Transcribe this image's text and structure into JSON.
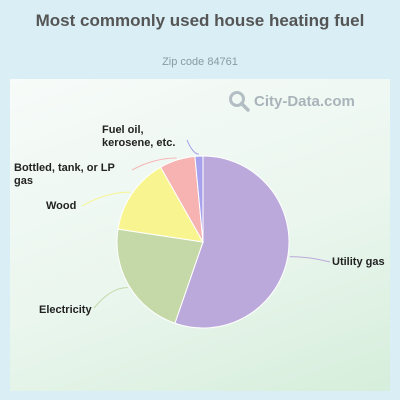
{
  "header": {
    "title": "Most commonly used house heating fuel",
    "subtitle": "Zip code 84761"
  },
  "watermark": {
    "text": "City-Data.com",
    "icon": "magnifier-icon"
  },
  "chart_data": {
    "type": "pie",
    "title": "Most commonly used house heating fuel",
    "subtitle": "Zip code 84761",
    "legend": "none",
    "slices": [
      {
        "label": "Utility gas",
        "value": 55.3,
        "color": "#bca9db"
      },
      {
        "label": "Electricity",
        "value": 22.1,
        "color": "#c5d9a8"
      },
      {
        "label": "Wood",
        "value": 14.4,
        "color": "#f8f591"
      },
      {
        "label": "Bottled, tank, or LP gas",
        "value": 6.7,
        "color": "#f7b3b2"
      },
      {
        "label": "Fuel oil, kerosene, etc.",
        "value": 1.5,
        "color": "#a8a2ee"
      }
    ]
  }
}
